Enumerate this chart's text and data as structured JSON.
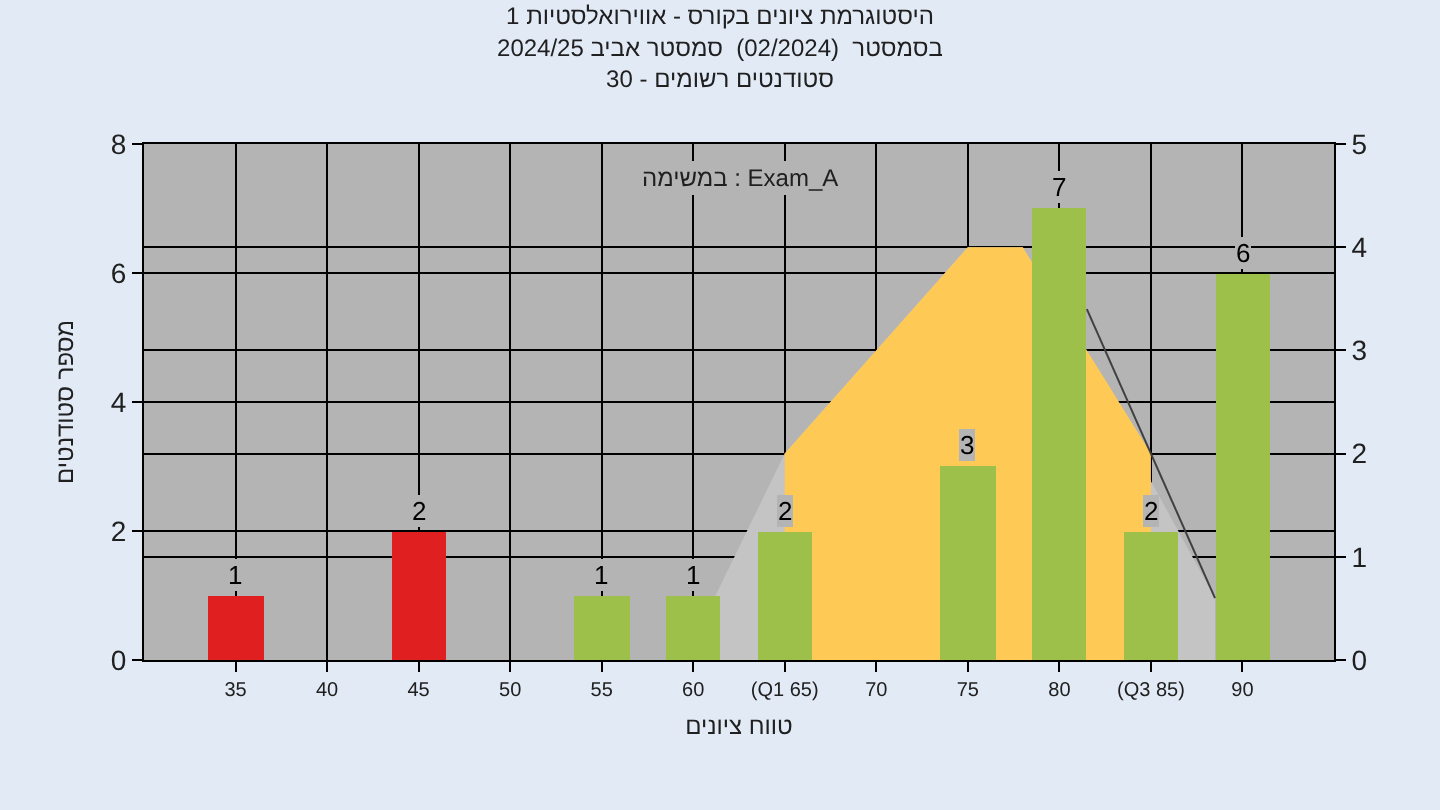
{
  "chart_data": {
    "type": "bar",
    "title": "היסטוגרמת ציונים בקורס - אווירואלסטיות 1",
    "subtitle": "בסמסטר  (02/2024)  סמסטר אביב 2024/25\nסטודנטים רשומים - 30",
    "xlabel": "טווח ציונים",
    "ylabel": "מספר סטודנטים",
    "annotations": [
      "במשימה : Exam_A"
    ],
    "x": [
      35,
      45,
      55,
      60,
      65,
      75,
      80,
      85,
      90
    ],
    "series": [
      {
        "type": "area",
        "axis": "y2",
        "color": "#c4c4c4",
        "x": [
          59.5,
          65,
          75,
          78,
          88.5
        ],
        "values": [
          0,
          2,
          4,
          4,
          0.6
        ]
      },
      {
        "type": "area",
        "axis": "y2",
        "color": "#ffc955",
        "x": [
          65,
          65,
          75,
          78,
          85,
          85
        ],
        "values": [
          0,
          2,
          4,
          4,
          2,
          0
        ]
      },
      {
        "type": "line",
        "axis": "y2",
        "color": "#404040",
        "x": [
          81.5,
          88.5
        ],
        "values": [
          3.4,
          0.6
        ]
      },
      {
        "colors": [
          "#e02020",
          "#e02020",
          "#9cc04a",
          "#9cc04a",
          "#9cc04a",
          "#9cc04a",
          "#9cc04a",
          "#9cc04a",
          "#9cc04a"
        ],
        "values": [
          1,
          2,
          1,
          1,
          2,
          3,
          7,
          2,
          6
        ],
        "value_labels": [
          "1",
          "2",
          "1",
          "1",
          "2",
          "3",
          "7",
          "2",
          "6"
        ]
      }
    ],
    "xlim": [
      30,
      95
    ],
    "xticks": [
      35,
      40,
      45,
      50,
      55,
      60,
      {
        "value": 65,
        "label": "(Q1 65)"
      },
      70,
      75,
      80,
      {
        "value": 85,
        "label": "(Q3 85)"
      },
      90
    ],
    "ylim": [
      0,
      8
    ],
    "yticks": [
      0,
      2,
      4,
      6,
      8
    ],
    "y2lim": [
      0,
      5
    ],
    "y2ticks": [
      0,
      1,
      2,
      3,
      4,
      5
    ],
    "grid": true,
    "legend": false
  }
}
